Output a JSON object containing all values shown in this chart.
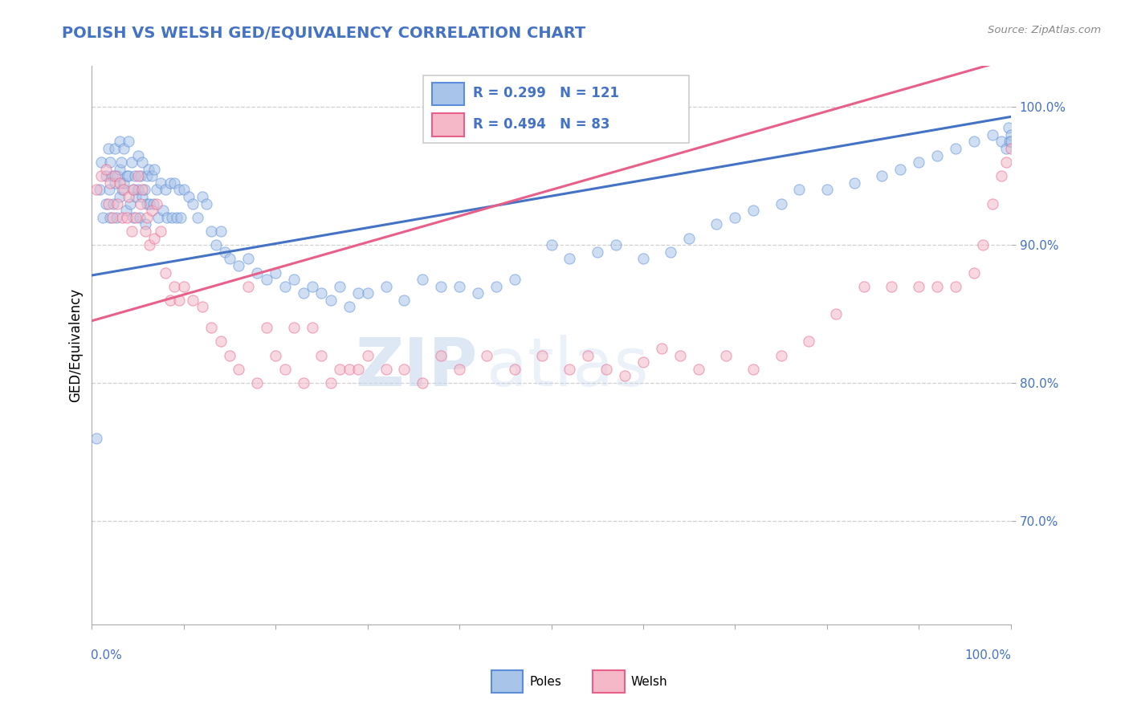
{
  "title": "POLISH VS WELSH GED/EQUIVALENCY CORRELATION CHART",
  "source_text": "Source: ZipAtlas.com",
  "ylabel": "GED/Equivalency",
  "right_yticks": [
    0.7,
    0.8,
    0.9,
    1.0
  ],
  "right_yticklabels": [
    "70.0%",
    "80.0%",
    "90.0%",
    "100.0%"
  ],
  "xmin": 0.0,
  "xmax": 1.0,
  "ymin": 0.625,
  "ymax": 1.03,
  "blue_color": "#a8c4e8",
  "pink_color": "#f4b8c8",
  "blue_edge_color": "#5b8dd9",
  "pink_edge_color": "#e8608a",
  "blue_line_color": "#4472c4",
  "pink_line_color": "#e8608a",
  "legend_blue_label": "Poles",
  "legend_pink_label": "Welsh",
  "blue_R": 0.299,
  "blue_N": 121,
  "pink_R": 0.494,
  "pink_N": 83,
  "blue_intercept": 0.878,
  "blue_slope": 0.115,
  "pink_intercept": 0.845,
  "pink_slope": 0.19,
  "watermark_zip": "ZIP",
  "watermark_atlas": "atlas",
  "title_color": "#4472c4",
  "axis_label_color": "#4472c4",
  "dot_size": 90,
  "dot_alpha": 0.55,
  "grid_color": "#d0d0d0",
  "grid_style": "--",
  "poles_x": [
    0.005,
    0.008,
    0.01,
    0.012,
    0.015,
    0.015,
    0.018,
    0.019,
    0.02,
    0.02,
    0.022,
    0.023,
    0.025,
    0.025,
    0.027,
    0.028,
    0.03,
    0.03,
    0.03,
    0.032,
    0.033,
    0.035,
    0.035,
    0.037,
    0.038,
    0.04,
    0.04,
    0.042,
    0.043,
    0.045,
    0.045,
    0.047,
    0.048,
    0.05,
    0.05,
    0.052,
    0.053,
    0.055,
    0.055,
    0.057,
    0.058,
    0.06,
    0.06,
    0.062,
    0.063,
    0.065,
    0.067,
    0.068,
    0.07,
    0.072,
    0.075,
    0.077,
    0.08,
    0.082,
    0.085,
    0.087,
    0.09,
    0.092,
    0.095,
    0.097,
    0.1,
    0.105,
    0.11,
    0.115,
    0.12,
    0.125,
    0.13,
    0.135,
    0.14,
    0.145,
    0.15,
    0.16,
    0.17,
    0.18,
    0.19,
    0.2,
    0.21,
    0.22,
    0.23,
    0.24,
    0.25,
    0.26,
    0.27,
    0.28,
    0.29,
    0.3,
    0.32,
    0.34,
    0.36,
    0.38,
    0.4,
    0.42,
    0.44,
    0.46,
    0.5,
    0.52,
    0.55,
    0.57,
    0.6,
    0.63,
    0.65,
    0.68,
    0.7,
    0.72,
    0.75,
    0.77,
    0.8,
    0.83,
    0.86,
    0.88,
    0.9,
    0.92,
    0.94,
    0.96,
    0.98,
    0.99,
    0.995,
    0.998,
    0.999,
    1.0,
    1.0
  ],
  "poles_y": [
    0.76,
    0.94,
    0.96,
    0.92,
    0.95,
    0.93,
    0.97,
    0.94,
    0.96,
    0.92,
    0.95,
    0.93,
    0.97,
    0.945,
    0.92,
    0.95,
    0.975,
    0.955,
    0.935,
    0.96,
    0.94,
    0.97,
    0.945,
    0.925,
    0.95,
    0.975,
    0.95,
    0.93,
    0.96,
    0.94,
    0.92,
    0.95,
    0.935,
    0.965,
    0.94,
    0.92,
    0.95,
    0.935,
    0.96,
    0.94,
    0.915,
    0.95,
    0.93,
    0.955,
    0.93,
    0.95,
    0.93,
    0.955,
    0.94,
    0.92,
    0.945,
    0.925,
    0.94,
    0.92,
    0.945,
    0.92,
    0.945,
    0.92,
    0.94,
    0.92,
    0.94,
    0.935,
    0.93,
    0.92,
    0.935,
    0.93,
    0.91,
    0.9,
    0.91,
    0.895,
    0.89,
    0.885,
    0.89,
    0.88,
    0.875,
    0.88,
    0.87,
    0.875,
    0.865,
    0.87,
    0.865,
    0.86,
    0.87,
    0.855,
    0.865,
    0.865,
    0.87,
    0.86,
    0.875,
    0.87,
    0.87,
    0.865,
    0.87,
    0.875,
    0.9,
    0.89,
    0.895,
    0.9,
    0.89,
    0.895,
    0.905,
    0.915,
    0.92,
    0.925,
    0.93,
    0.94,
    0.94,
    0.945,
    0.95,
    0.955,
    0.96,
    0.965,
    0.97,
    0.975,
    0.98,
    0.975,
    0.97,
    0.985,
    0.975,
    0.98,
    0.975
  ],
  "welsh_x": [
    0.005,
    0.01,
    0.015,
    0.018,
    0.02,
    0.022,
    0.025,
    0.028,
    0.03,
    0.033,
    0.035,
    0.038,
    0.04,
    0.043,
    0.045,
    0.048,
    0.05,
    0.053,
    0.055,
    0.058,
    0.06,
    0.063,
    0.065,
    0.068,
    0.07,
    0.075,
    0.08,
    0.085,
    0.09,
    0.095,
    0.1,
    0.11,
    0.12,
    0.13,
    0.14,
    0.15,
    0.16,
    0.17,
    0.18,
    0.19,
    0.2,
    0.21,
    0.22,
    0.23,
    0.24,
    0.25,
    0.26,
    0.27,
    0.28,
    0.29,
    0.3,
    0.32,
    0.34,
    0.36,
    0.38,
    0.4,
    0.43,
    0.46,
    0.49,
    0.52,
    0.54,
    0.56,
    0.58,
    0.6,
    0.62,
    0.64,
    0.66,
    0.69,
    0.72,
    0.75,
    0.78,
    0.81,
    0.84,
    0.87,
    0.9,
    0.92,
    0.94,
    0.96,
    0.97,
    0.98,
    0.99,
    0.995,
    1.0
  ],
  "welsh_y": [
    0.94,
    0.95,
    0.955,
    0.93,
    0.945,
    0.92,
    0.95,
    0.93,
    0.945,
    0.92,
    0.94,
    0.92,
    0.935,
    0.91,
    0.94,
    0.92,
    0.95,
    0.93,
    0.94,
    0.91,
    0.92,
    0.9,
    0.925,
    0.905,
    0.93,
    0.91,
    0.88,
    0.86,
    0.87,
    0.86,
    0.87,
    0.86,
    0.855,
    0.84,
    0.83,
    0.82,
    0.81,
    0.87,
    0.8,
    0.84,
    0.82,
    0.81,
    0.84,
    0.8,
    0.84,
    0.82,
    0.8,
    0.81,
    0.81,
    0.81,
    0.82,
    0.81,
    0.81,
    0.8,
    0.82,
    0.81,
    0.82,
    0.81,
    0.82,
    0.81,
    0.82,
    0.81,
    0.805,
    0.815,
    0.825,
    0.82,
    0.81,
    0.82,
    0.81,
    0.82,
    0.83,
    0.85,
    0.87,
    0.87,
    0.87,
    0.87,
    0.87,
    0.88,
    0.9,
    0.93,
    0.95,
    0.96,
    0.97
  ]
}
